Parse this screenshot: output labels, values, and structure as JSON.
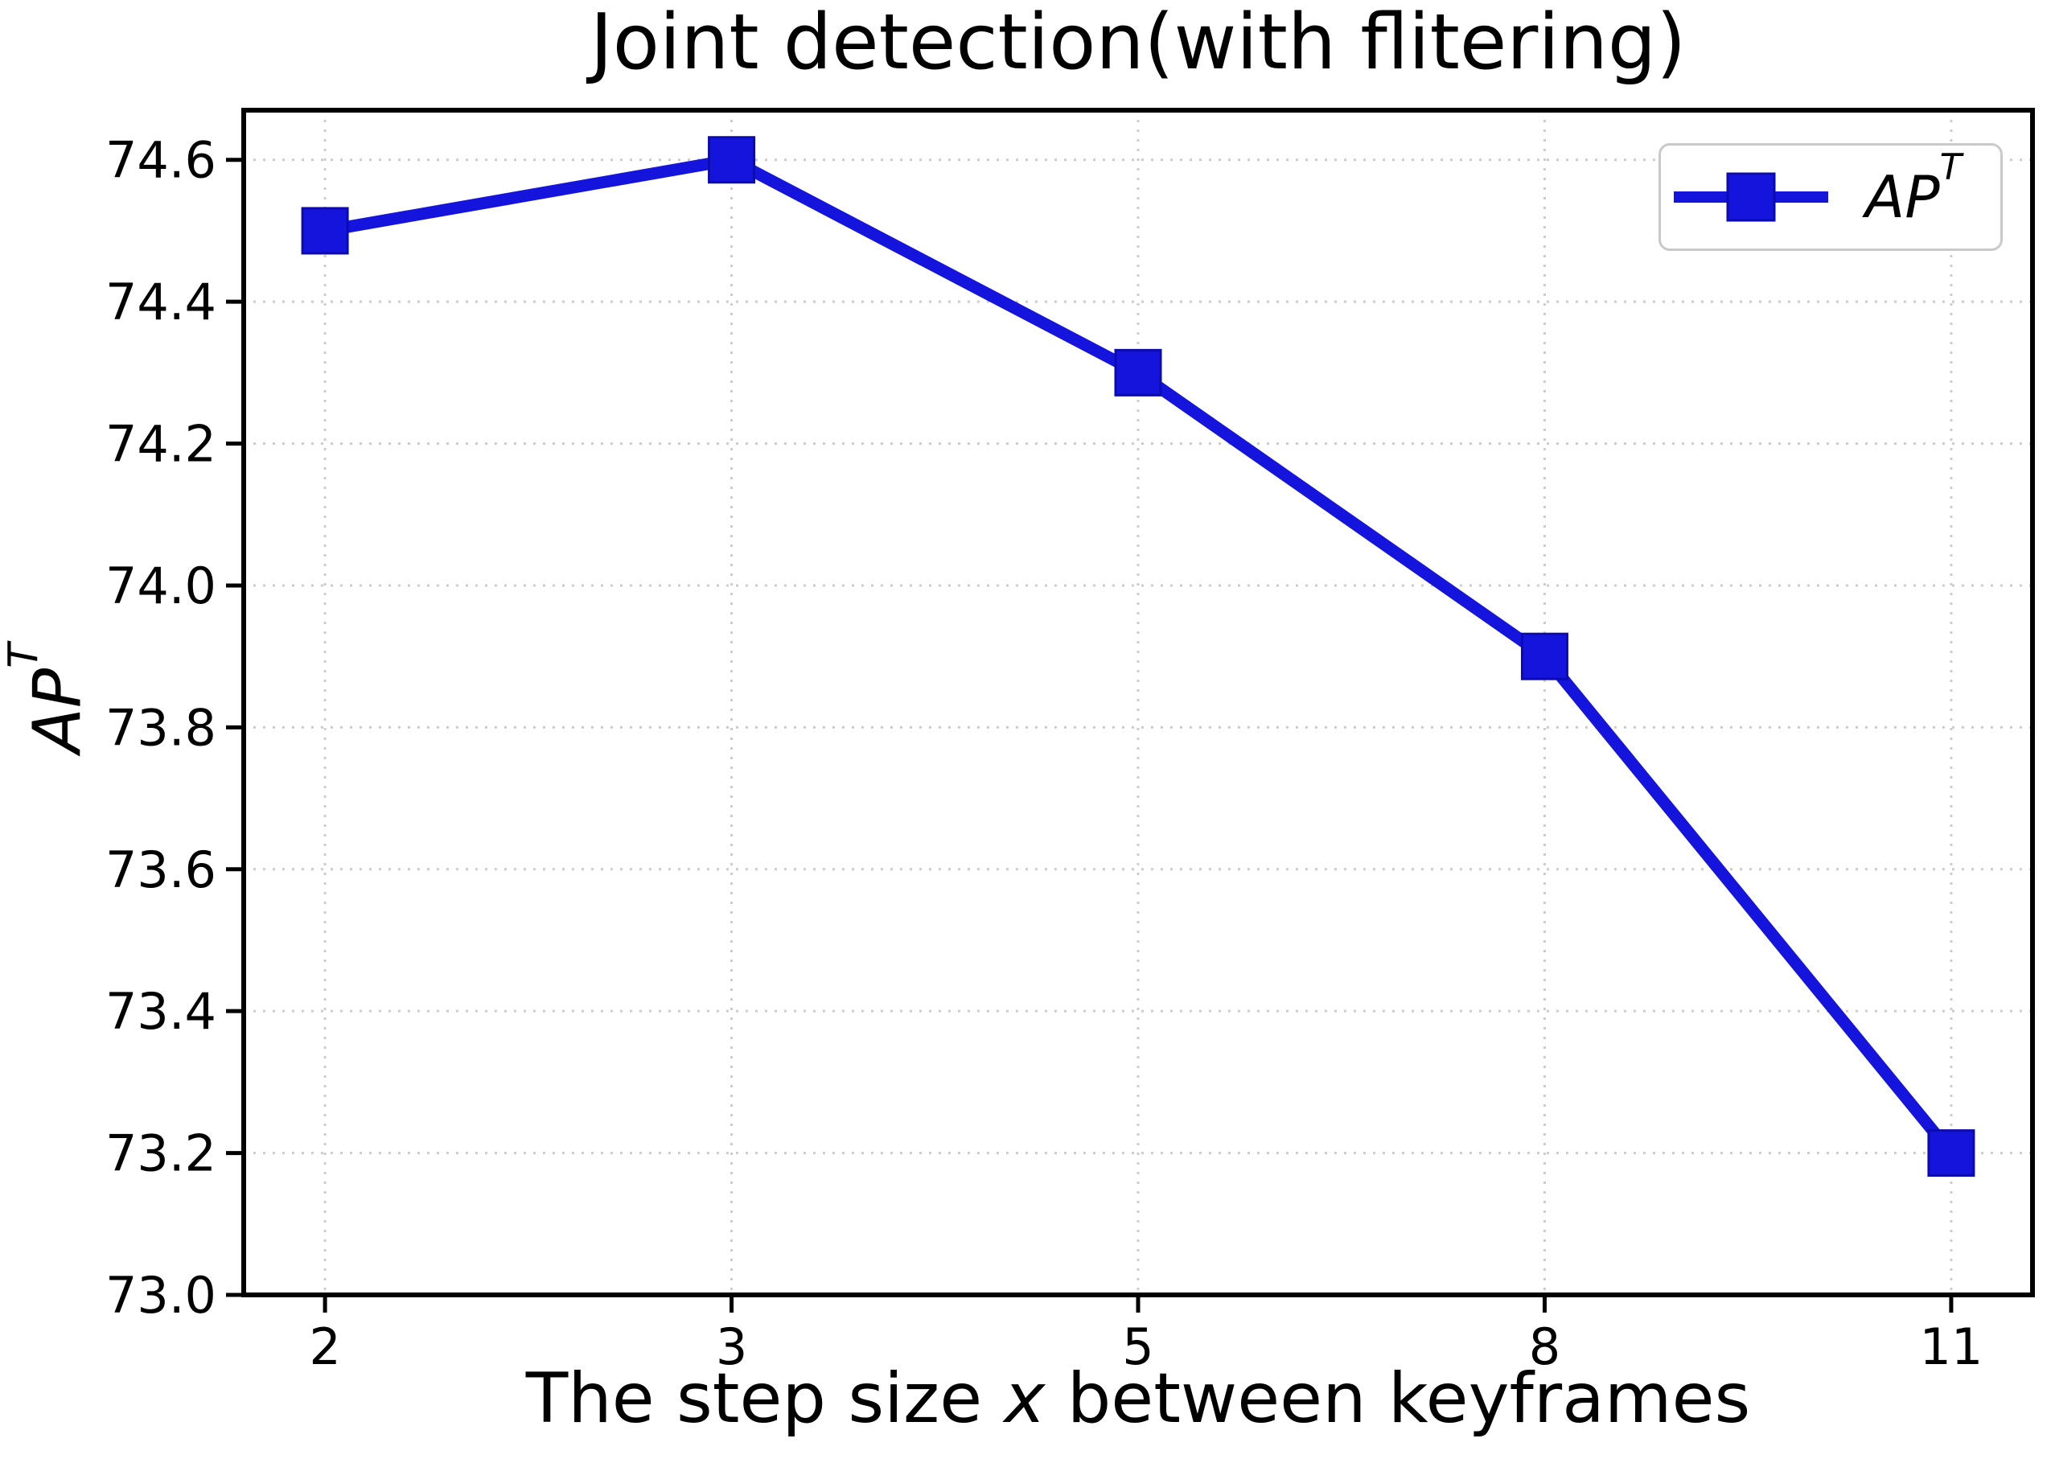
{
  "chart_data": {
    "type": "line",
    "title": "Joint detection(with flitering)",
    "xlabel": "The step size x between keyframes",
    "xlabel_parts": {
      "prefix": "The step size ",
      "italic": "x",
      "suffix": " between keyframes"
    },
    "ylabel": "AP^T",
    "ylabel_parts": {
      "base": "AP",
      "sup": "T"
    },
    "categories": [
      "2",
      "3",
      "5",
      "8",
      "11"
    ],
    "series": [
      {
        "name": "AP^T",
        "name_parts": {
          "base": "AP",
          "sup": "T"
        },
        "color": "#1414dc",
        "marker": "square",
        "values": [
          74.5,
          74.6,
          74.3,
          73.9,
          73.2
        ]
      }
    ],
    "y_ticks": [
      "73.0",
      "73.2",
      "73.4",
      "73.6",
      "73.8",
      "74.0",
      "74.2",
      "74.4",
      "74.6"
    ],
    "ylim": [
      73.0,
      74.67
    ],
    "grid": true,
    "grid_style": "dashed",
    "legend_position": "top-right"
  },
  "style": {
    "line_color": "#1414dc",
    "marker_edge_color": "#0b0bb0",
    "grid_color": "#cccccc",
    "frame_color": "#000000",
    "tick_color": "#000000",
    "text_color": "#000000",
    "legend_border_color": "#c9c9c9",
    "background_color": "#ffffff"
  }
}
